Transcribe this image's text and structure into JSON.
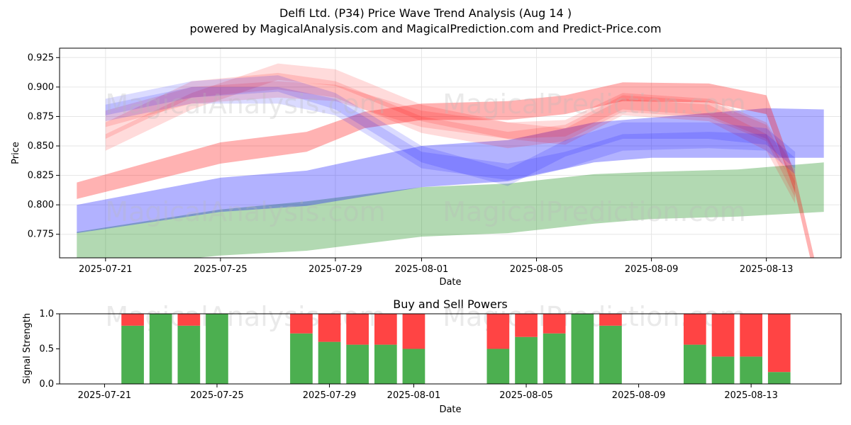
{
  "header": {
    "title": "Delfi Ltd. (P34) Price Wave Trend Analysis (Aug 14 )",
    "subtitle": "powered by MagicalAnalysis.com and MagicalPrediction.com and Predict-Price.com"
  },
  "watermarks": [
    "MagicalAnalysis.com",
    "MagicalPrediction.com"
  ],
  "colors": {
    "red_band": "#ff0000",
    "blue_band": "#0000ff",
    "green_band": "#008000",
    "buy": "#4caf50",
    "sell": "#ff4444",
    "grid": "#e6e6e6"
  },
  "chart_data": [
    {
      "type": "area",
      "name": "price-wave",
      "xlabel": "Date",
      "ylabel": "Price",
      "x_start": "2025-07-20",
      "x_end": "2025-08-15",
      "ylim": [
        0.755,
        0.933
      ],
      "x_ticks": [
        "2025-07-21",
        "2025-07-25",
        "2025-07-29",
        "2025-08-01",
        "2025-08-05",
        "2025-08-09",
        "2025-08-13"
      ],
      "y_ticks": [
        0.775,
        0.8,
        0.825,
        0.85,
        0.875,
        0.9,
        0.925
      ],
      "grid": true,
      "bands": [
        {
          "color": "green",
          "x": [
            "2025-07-20",
            "2025-07-25",
            "2025-07-28",
            "2025-08-01",
            "2025-08-04",
            "2025-08-07",
            "2025-08-09",
            "2025-08-12",
            "2025-08-15"
          ],
          "upper": [
            0.777,
            0.796,
            0.803,
            0.815,
            0.818,
            0.826,
            0.828,
            0.83,
            0.836
          ],
          "lower": [
            0.745,
            0.757,
            0.761,
            0.773,
            0.776,
            0.784,
            0.788,
            0.79,
            0.794
          ]
        },
        {
          "color": "blue",
          "x": [
            "2025-07-20",
            "2025-07-25",
            "2025-07-28",
            "2025-08-01",
            "2025-08-04",
            "2025-08-07",
            "2025-08-09",
            "2025-08-13",
            "2025-08-15"
          ],
          "upper": [
            0.8,
            0.823,
            0.829,
            0.85,
            0.855,
            0.87,
            0.874,
            0.882,
            0.881
          ],
          "lower": [
            0.776,
            0.794,
            0.799,
            0.815,
            0.82,
            0.836,
            0.84,
            0.84,
            0.84
          ]
        },
        {
          "color": "red",
          "x": [
            "2025-07-20",
            "2025-07-25",
            "2025-07-28",
            "2025-07-30",
            "2025-08-01",
            "2025-08-04",
            "2025-08-06",
            "2025-08-08",
            "2025-08-11",
            "2025-08-13",
            "2025-08-14",
            "2025-08-15"
          ],
          "upper": [
            0.819,
            0.853,
            0.862,
            0.879,
            0.886,
            0.888,
            0.893,
            0.904,
            0.903,
            0.893,
            0.825,
            0.72
          ],
          "lower": [
            0.805,
            0.835,
            0.845,
            0.865,
            0.872,
            0.872,
            0.877,
            0.888,
            0.887,
            0.877,
            0.81,
            0.705
          ]
        },
        {
          "color": "red",
          "x": [
            "2025-07-21",
            "2025-07-24",
            "2025-07-27",
            "2025-07-29",
            "2025-08-01",
            "2025-08-04",
            "2025-08-06",
            "2025-08-08",
            "2025-08-11",
            "2025-08-13",
            "2025-08-14"
          ],
          "upper": [
            0.88,
            0.9,
            0.905,
            0.902,
            0.88,
            0.87,
            0.872,
            0.895,
            0.89,
            0.87,
            0.83
          ],
          "lower": [
            0.866,
            0.886,
            0.891,
            0.888,
            0.866,
            0.856,
            0.858,
            0.881,
            0.876,
            0.856,
            0.816
          ]
        },
        {
          "color": "red",
          "x": [
            "2025-07-21",
            "2025-07-24",
            "2025-07-27",
            "2025-07-29",
            "2025-08-01",
            "2025-08-04",
            "2025-08-06",
            "2025-08-08",
            "2025-08-11",
            "2025-08-13",
            "2025-08-14"
          ],
          "upper": [
            0.87,
            0.905,
            0.912,
            0.905,
            0.875,
            0.862,
            0.868,
            0.893,
            0.888,
            0.868,
            0.82
          ],
          "lower": [
            0.856,
            0.891,
            0.898,
            0.891,
            0.861,
            0.848,
            0.854,
            0.879,
            0.874,
            0.854,
            0.806
          ]
        },
        {
          "color": "red",
          "x": [
            "2025-07-21",
            "2025-07-24",
            "2025-07-27",
            "2025-07-29",
            "2025-08-01",
            "2025-08-04",
            "2025-08-06",
            "2025-08-08",
            "2025-08-11",
            "2025-08-13",
            "2025-08-14"
          ],
          "upper": [
            0.86,
            0.895,
            0.92,
            0.915,
            0.885,
            0.87,
            0.865,
            0.89,
            0.885,
            0.86,
            0.815
          ],
          "lower": [
            0.846,
            0.881,
            0.906,
            0.901,
            0.871,
            0.856,
            0.851,
            0.876,
            0.871,
            0.846,
            0.801
          ]
        },
        {
          "color": "blue",
          "x": [
            "2025-07-21",
            "2025-07-24",
            "2025-07-27",
            "2025-07-29",
            "2025-07-31",
            "2025-08-01",
            "2025-08-04",
            "2025-08-06",
            "2025-08-08",
            "2025-08-11",
            "2025-08-13",
            "2025-08-14"
          ],
          "upper": [
            0.885,
            0.9,
            0.9,
            0.89,
            0.86,
            0.845,
            0.835,
            0.845,
            0.86,
            0.862,
            0.86,
            0.84
          ],
          "lower": [
            0.871,
            0.886,
            0.886,
            0.876,
            0.846,
            0.831,
            0.821,
            0.831,
            0.846,
            0.848,
            0.846,
            0.826
          ]
        },
        {
          "color": "blue",
          "x": [
            "2025-07-21",
            "2025-07-24",
            "2025-07-27",
            "2025-07-29",
            "2025-07-31",
            "2025-08-01",
            "2025-08-04",
            "2025-08-06",
            "2025-08-08",
            "2025-08-11",
            "2025-08-13",
            "2025-08-14"
          ],
          "upper": [
            0.89,
            0.905,
            0.91,
            0.895,
            0.865,
            0.85,
            0.83,
            0.855,
            0.87,
            0.87,
            0.865,
            0.845
          ],
          "lower": [
            0.876,
            0.891,
            0.896,
            0.881,
            0.851,
            0.836,
            0.816,
            0.841,
            0.856,
            0.856,
            0.851,
            0.831
          ]
        }
      ]
    },
    {
      "type": "bar",
      "name": "buy-sell-powers",
      "title": "Buy and Sell Powers",
      "xlabel": "Date",
      "ylabel": "Signal Strength",
      "ylim": [
        0,
        1.0
      ],
      "y_ticks": [
        0.0,
        0.5,
        1.0
      ],
      "x_ticks": [
        "2025-07-21",
        "2025-07-25",
        "2025-07-29",
        "2025-08-01",
        "2025-08-05",
        "2025-08-09",
        "2025-08-13"
      ],
      "categories": [
        "2025-07-22",
        "2025-07-23",
        "2025-07-24",
        "2025-07-25",
        "2025-07-28",
        "2025-07-29",
        "2025-07-30",
        "2025-07-31",
        "2025-08-01",
        "2025-08-04",
        "2025-08-05",
        "2025-08-06",
        "2025-08-07",
        "2025-08-08",
        "2025-08-11",
        "2025-08-12",
        "2025-08-13",
        "2025-08-14"
      ],
      "series": [
        {
          "name": "Buy",
          "values": [
            0.83,
            1.0,
            0.83,
            1.0,
            0.72,
            0.6,
            0.56,
            0.56,
            0.5,
            0.5,
            0.67,
            0.72,
            1.0,
            0.83,
            0.56,
            0.39,
            0.39,
            0.17
          ]
        },
        {
          "name": "Sell",
          "values": [
            0.17,
            0.0,
            0.17,
            0.0,
            0.28,
            0.4,
            0.44,
            0.44,
            0.5,
            0.5,
            0.33,
            0.28,
            0.0,
            0.17,
            0.44,
            0.61,
            0.61,
            0.83
          ]
        }
      ]
    }
  ]
}
